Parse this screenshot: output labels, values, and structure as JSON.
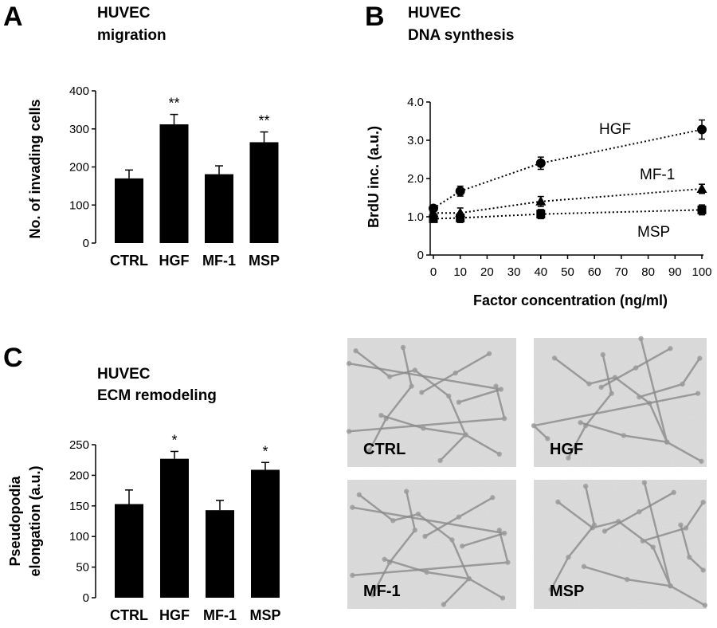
{
  "panels": {
    "a": {
      "letter": "A",
      "title_line1": "HUVEC",
      "title_line2": "migration"
    },
    "b": {
      "letter": "B",
      "title_line1": "HUVEC",
      "title_line2": "DNA synthesis"
    },
    "c": {
      "letter": "C",
      "title_line1": "HUVEC",
      "title_line2": "ECM remodeling"
    }
  },
  "chart_data": [
    {
      "id": "A",
      "type": "bar",
      "title": "HUVEC migration",
      "ylabel": "No. of invading cells",
      "xlabel": "",
      "categories": [
        "CTRL",
        "HGF",
        "MF-1",
        "MSP"
      ],
      "values": [
        170,
        312,
        181,
        265
      ],
      "errors": [
        22,
        26,
        22,
        27
      ],
      "significance": [
        "",
        "**",
        "",
        "**"
      ],
      "ylim": [
        0,
        400
      ],
      "yticks": [
        0,
        100,
        200,
        300,
        400
      ],
      "colors": {
        "bar": "#000000"
      }
    },
    {
      "id": "B",
      "type": "line",
      "title": "HUVEC DNA synthesis",
      "xlabel": "Factor concentration (ng/ml)",
      "ylabel": "BrdU inc. (a.u.)",
      "xlim": [
        0,
        100
      ],
      "ylim": [
        0,
        4.0
      ],
      "xticks": [
        0,
        10,
        20,
        30,
        40,
        50,
        60,
        70,
        80,
        90,
        100
      ],
      "yticks": [
        "0",
        "1.0",
        "2.0",
        "3.0",
        "4.0"
      ],
      "x": [
        0,
        10,
        40,
        100
      ],
      "series": [
        {
          "name": "HGF",
          "marker": "circle",
          "values": [
            1.22,
            1.67,
            2.4,
            3.28
          ],
          "errors": [
            0.05,
            0.13,
            0.16,
            0.25
          ]
        },
        {
          "name": "MF-1",
          "marker": "triangle",
          "values": [
            1.1,
            1.1,
            1.4,
            1.73
          ],
          "errors": [
            0.05,
            0.13,
            0.13,
            0.12
          ]
        },
        {
          "name": "MSP",
          "marker": "square",
          "values": [
            0.95,
            0.97,
            1.07,
            1.18
          ],
          "errors": [
            0.05,
            0.12,
            0.12,
            0.13
          ]
        }
      ],
      "line_style": "dotted"
    },
    {
      "id": "C",
      "type": "bar",
      "title": "HUVEC ECM remodeling",
      "ylabel_line1": "Pseudopodia",
      "ylabel_line2": "elongation (a.u.)",
      "xlabel": "",
      "categories": [
        "CTRL",
        "HGF",
        "MF-1",
        "MSP"
      ],
      "values": [
        153,
        227,
        143,
        209
      ],
      "errors": [
        23,
        12,
        16,
        12
      ],
      "significance": [
        "",
        "*",
        "",
        "*"
      ],
      "ylim": [
        0,
        250
      ],
      "yticks": [
        0,
        50,
        100,
        150,
        200,
        250
      ],
      "colors": {
        "bar": "#000000"
      }
    }
  ],
  "micrographs": [
    {
      "label": "CTRL"
    },
    {
      "label": "HGF"
    },
    {
      "label": "MF-1"
    },
    {
      "label": "MSP"
    }
  ]
}
